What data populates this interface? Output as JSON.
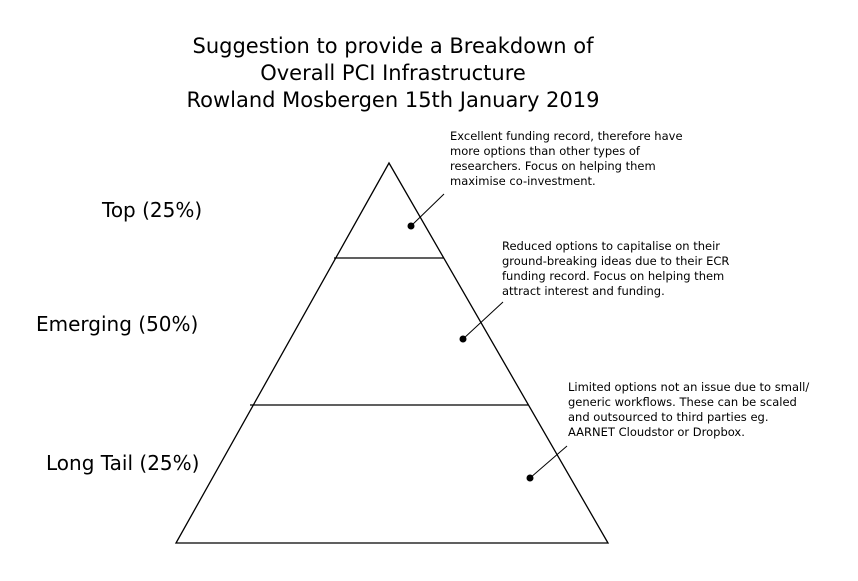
{
  "title": {
    "lines": [
      "Suggestion to provide a Breakdown of",
      "Overall PCI Infrastructure",
      "Rowland Mosbergen 15th January 2019"
    ]
  },
  "tiers": [
    {
      "label": "Top (25%)"
    },
    {
      "label": "Emerging (50%)"
    },
    {
      "label": "Long Tail (25%)"
    }
  ],
  "notes": [
    {
      "lines": [
        "Excellent funding record, therefore have",
        "more options than other types of",
        "researchers. Focus on helping them",
        "maximise co-investment."
      ]
    },
    {
      "lines": [
        "Reduced options to capitalise on their",
        "ground-breaking ideas due to their ECR",
        "funding record. Focus on helping them",
        "attract interest and funding."
      ]
    },
    {
      "lines": [
        "Limited options not an issue due to small/",
        "generic workflows. These can be scaled",
        "and outsourced to third parties eg.",
        "AARNET Cloudstor or Dropbox."
      ]
    }
  ]
}
